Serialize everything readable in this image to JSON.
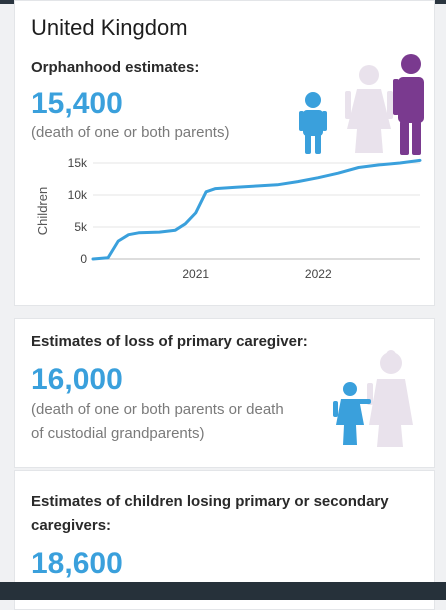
{
  "page": {
    "country": "United Kingdom"
  },
  "orphanhood": {
    "label": "Orphanhood estimates:",
    "value": "15,400",
    "note": "(death of one or both parents)"
  },
  "primary_caregiver": {
    "label": "Estimates of loss of primary caregiver:",
    "value": "16,000",
    "note_line1": "(death of one or both parents or death",
    "note_line2": "of custodial grandparents)"
  },
  "primary_secondary": {
    "label_line1": "Estimates of children losing primary or secondary",
    "label_line2": "caregivers:",
    "value": "18,600"
  },
  "colors": {
    "accent": "#3aa0dc",
    "child_icon": "#3aa0dc",
    "mother_icon": "#e9e2ec",
    "father_icon": "#7a3a8f"
  },
  "icons": [
    "child-icon",
    "mother-icon",
    "father-icon",
    "grandparent-icon"
  ],
  "chart_data": {
    "type": "line",
    "title": "",
    "xlabel": "",
    "ylabel": "Children",
    "ylim": [
      0,
      15000
    ],
    "yticks": [
      0,
      5000,
      10000,
      15000
    ],
    "ytick_labels": [
      "0",
      "5k",
      "10k",
      "15k"
    ],
    "xtick_labels": [
      "2021",
      "2022"
    ],
    "xticks": [
      "2021-01-01",
      "2022-01-01"
    ],
    "xlim": [
      "2020-03-01",
      "2022-10-31"
    ],
    "grid": true,
    "series": [
      {
        "x": [
          "2020-03-01",
          "2020-04-15",
          "2020-05-15",
          "2020-06-15",
          "2020-07-15",
          "2020-09-15",
          "2020-11-01",
          "2020-12-01",
          "2021-01-01",
          "2021-02-01",
          "2021-03-01",
          "2021-05-01",
          "2021-07-01",
          "2021-09-01",
          "2021-11-01",
          "2022-01-01",
          "2022-03-01",
          "2022-05-01",
          "2022-07-01",
          "2022-09-01",
          "2022-10-31"
        ],
        "y": [
          0,
          200,
          2800,
          3800,
          4100,
          4200,
          4500,
          5500,
          7200,
          10500,
          11000,
          11200,
          11400,
          11600,
          12100,
          12700,
          13400,
          14300,
          14700,
          15000,
          15400
        ]
      }
    ]
  }
}
